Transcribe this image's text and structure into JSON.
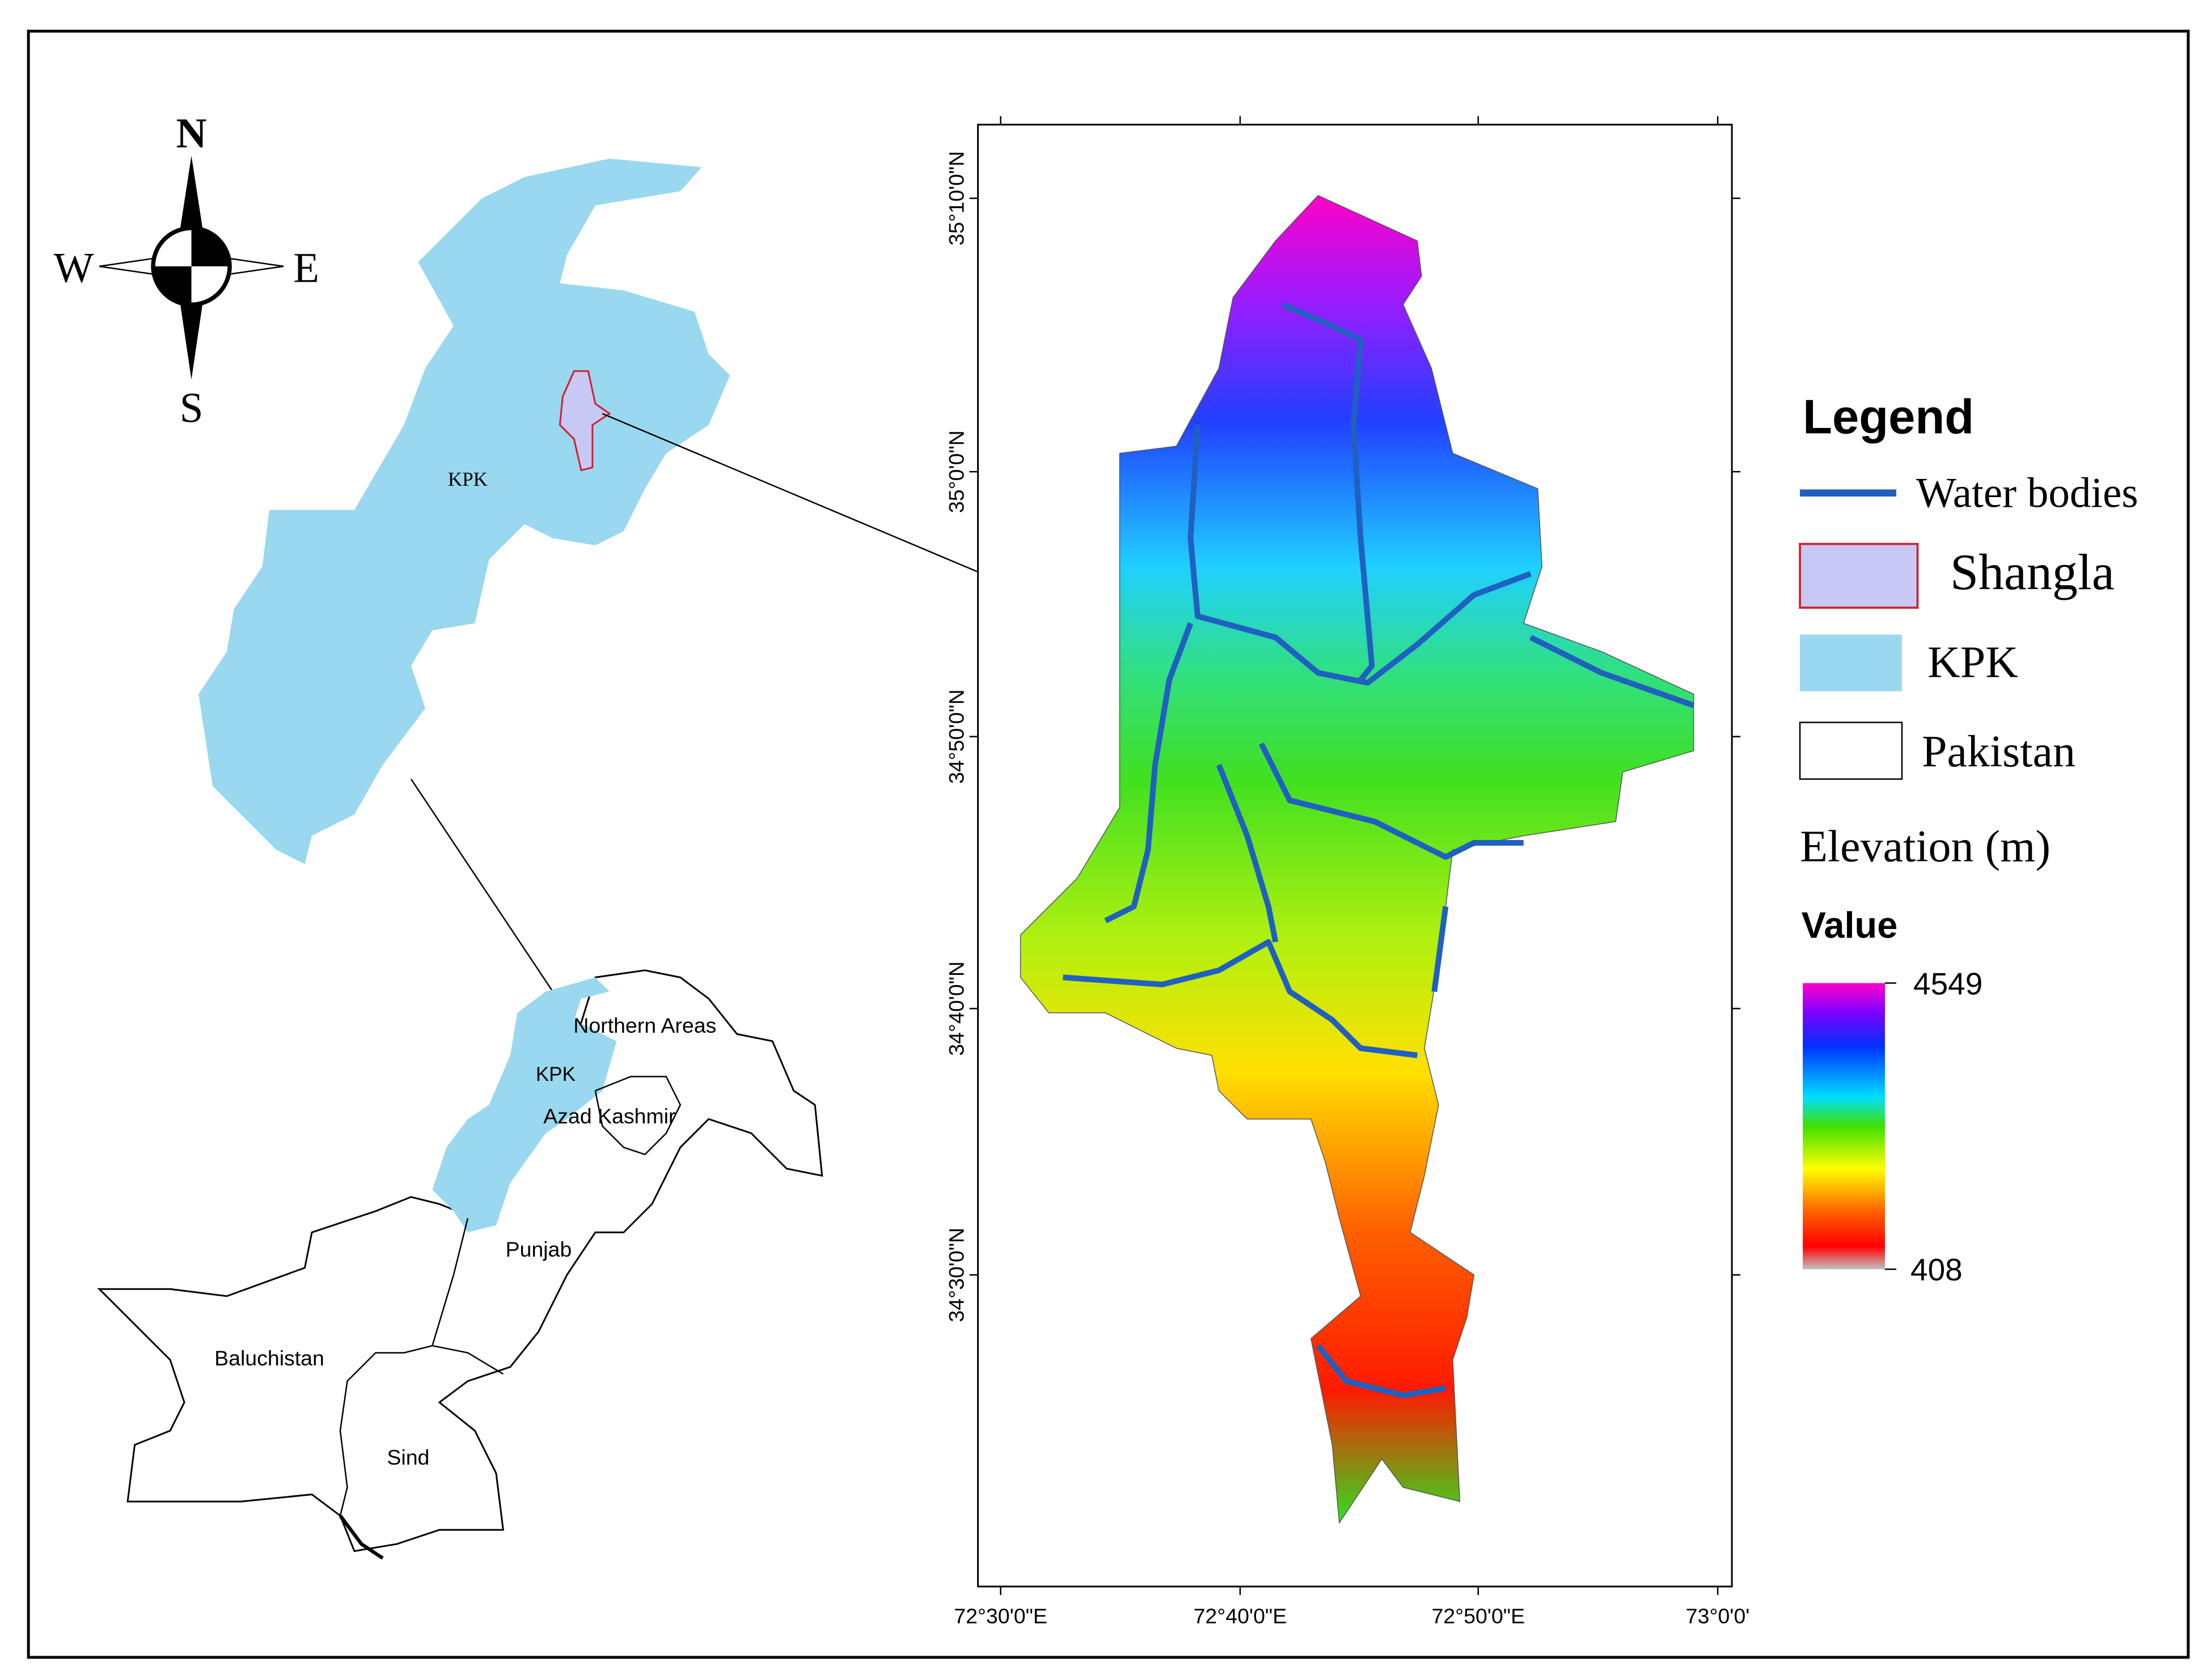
{
  "compass": {
    "north": "N",
    "south": "S",
    "east": "E",
    "west": "W"
  },
  "kpk_map": {
    "label": "KPK"
  },
  "pakistan_map": {
    "labels": [
      "Northern Areas",
      "KPK",
      "Azad Kashmir",
      "Punjab",
      "Baluchistan",
      "Sind"
    ]
  },
  "shangla_map": {
    "latitude_labels": [
      "35°10'0\"N",
      "35°0'0\"N",
      "34°50'0\"N",
      "34°40'0\"N",
      "34°30'0\"N"
    ],
    "longitude_labels": [
      "72°30'0\"E",
      "72°40'0\"E",
      "72°50'0\"E",
      "73°0'0'"
    ]
  },
  "legend": {
    "title": "Legend",
    "items": [
      "Water bodies",
      "Shangla",
      "KPK",
      "Pakistan"
    ],
    "elevation_title": "Elevation (m)",
    "value_title": "Value",
    "max": 4549,
    "min": 408
  }
}
